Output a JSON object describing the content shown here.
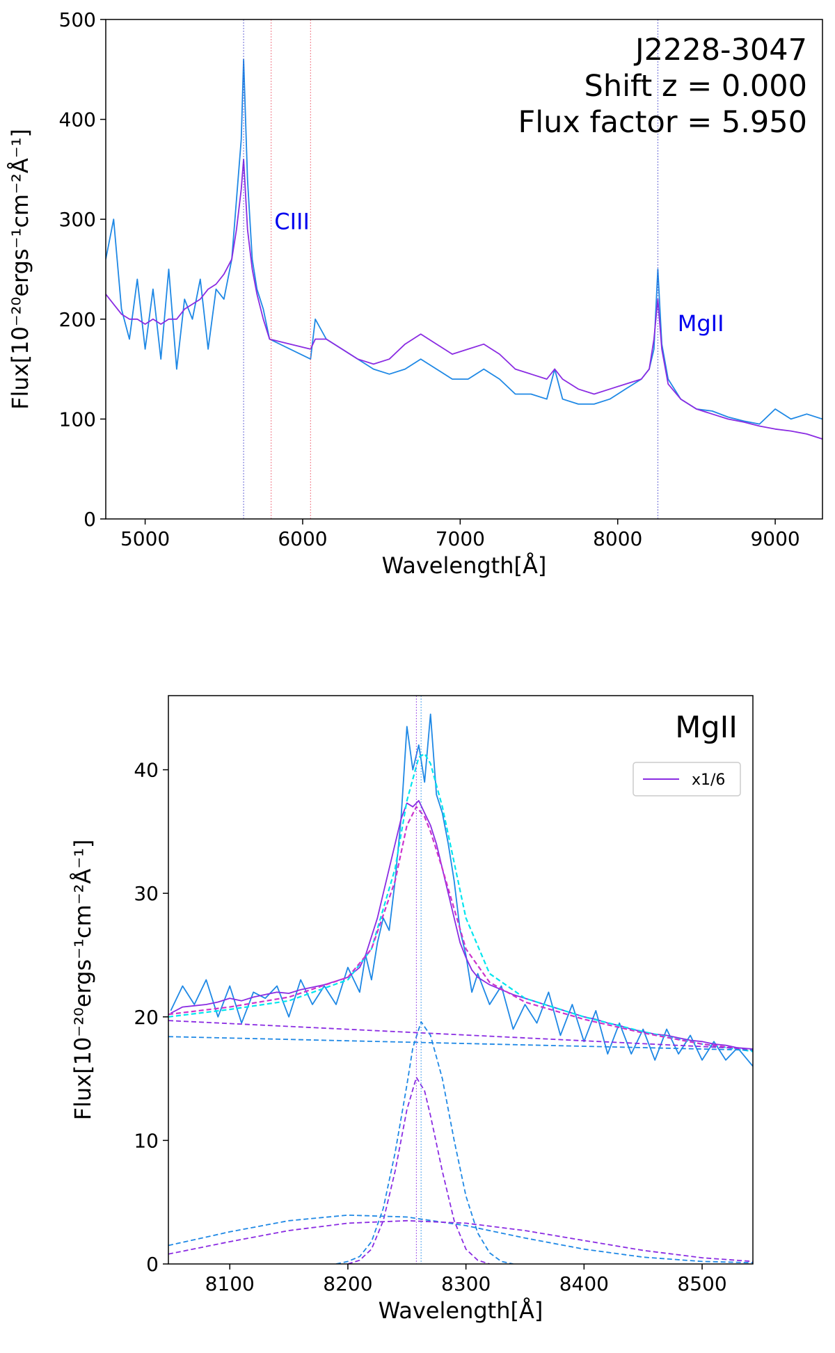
{
  "chart_data": [
    {
      "type": "line",
      "xlabel": "Wavelength[Å]",
      "ylabel": "Flux[10⁻²⁰ergs⁻¹cm⁻²Å⁻¹]",
      "xlim": [
        4750,
        9300
      ],
      "ylim": [
        0,
        500
      ],
      "xticks": [
        5000,
        6000,
        7000,
        8000,
        9000
      ],
      "yticks": [
        0,
        100,
        200,
        300,
        400,
        500
      ],
      "grid": false,
      "annotation_lines": [
        "J2228-3047",
        "Shift z  = 0.000",
        "Flux factor = 5.950"
      ],
      "line_labels": [
        {
          "text": "CIII",
          "x": 5820,
          "y": 290,
          "color": "#0000ee"
        },
        {
          "text": "MgII",
          "x": 8380,
          "y": 188,
          "color": "#0000ee"
        }
      ],
      "vlines": [
        {
          "x": 5625,
          "color": "#4444cc"
        },
        {
          "x": 5800,
          "color": "#ee5566"
        },
        {
          "x": 6050,
          "color": "#ee5566"
        },
        {
          "x": 8255,
          "color": "#4444cc"
        }
      ],
      "series": [
        {
          "color": "#1e88e5",
          "x": [
            4750,
            4800,
            4850,
            4900,
            4950,
            5000,
            5050,
            5100,
            5150,
            5200,
            5250,
            5300,
            5350,
            5400,
            5450,
            5500,
            5550,
            5580,
            5610,
            5625,
            5650,
            5680,
            5710,
            5750,
            5790,
            6050,
            6080,
            6150,
            6250,
            6350,
            6450,
            6550,
            6650,
            6750,
            6850,
            6950,
            7050,
            7150,
            7250,
            7350,
            7450,
            7550,
            7600,
            7650,
            7750,
            7850,
            7950,
            8050,
            8150,
            8200,
            8230,
            8255,
            8280,
            8320,
            8400,
            8500,
            8600,
            8700,
            8800,
            8900,
            9000,
            9100,
            9200,
            9300
          ],
          "y": [
            260,
            300,
            210,
            180,
            240,
            170,
            230,
            160,
            250,
            150,
            220,
            200,
            240,
            170,
            230,
            220,
            260,
            320,
            380,
            460,
            340,
            260,
            230,
            210,
            180,
            160,
            200,
            180,
            170,
            160,
            150,
            145,
            150,
            160,
            150,
            140,
            140,
            150,
            140,
            125,
            125,
            120,
            150,
            120,
            115,
            115,
            120,
            130,
            140,
            150,
            170,
            250,
            175,
            140,
            120,
            110,
            108,
            102,
            98,
            95,
            110,
            100,
            105,
            100
          ]
        },
        {
          "color": "#8a2be2",
          "x": [
            4750,
            4800,
            4850,
            4900,
            4950,
            5000,
            5050,
            5100,
            5150,
            5200,
            5250,
            5300,
            5350,
            5400,
            5450,
            5500,
            5550,
            5580,
            5610,
            5625,
            5650,
            5680,
            5710,
            5750,
            5790,
            6050,
            6080,
            6150,
            6250,
            6350,
            6450,
            6550,
            6650,
            6750,
            6850,
            6950,
            7050,
            7150,
            7250,
            7350,
            7450,
            7550,
            7600,
            7650,
            7750,
            7850,
            7950,
            8050,
            8150,
            8200,
            8230,
            8255,
            8280,
            8320,
            8400,
            8500,
            8600,
            8700,
            8800,
            8900,
            9000,
            9100,
            9200,
            9300
          ],
          "y": [
            225,
            215,
            205,
            200,
            200,
            195,
            200,
            195,
            200,
            200,
            210,
            215,
            220,
            230,
            235,
            245,
            260,
            290,
            330,
            360,
            290,
            250,
            225,
            200,
            180,
            170,
            180,
            180,
            170,
            160,
            155,
            160,
            175,
            185,
            175,
            165,
            170,
            175,
            165,
            150,
            145,
            140,
            150,
            140,
            130,
            125,
            130,
            135,
            140,
            150,
            180,
            220,
            170,
            135,
            120,
            110,
            105,
            100,
            97,
            93,
            90,
            88,
            85,
            80
          ]
        }
      ]
    },
    {
      "type": "line",
      "title": "MgII",
      "xlabel": "Wavelength[Å]",
      "ylabel": "Flux[10⁻²⁰ergs⁻¹cm⁻²Å⁻¹]",
      "xlim": [
        8048,
        8543
      ],
      "ylim": [
        0,
        46
      ],
      "xticks": [
        8100,
        8200,
        8300,
        8400,
        8500
      ],
      "yticks": [
        0,
        10,
        20,
        30,
        40
      ],
      "grid": false,
      "legend": {
        "position": "top-right",
        "entries": [
          {
            "name": "x1/6",
            "color": "#8a2be2"
          }
        ]
      },
      "vlines": [
        {
          "x": 8258,
          "color": "#8a2be2"
        },
        {
          "x": 8262,
          "color": "#1e88e5"
        }
      ],
      "series": [
        {
          "color": "#1e88e5",
          "style": "data",
          "x": [
            8050,
            8060,
            8070,
            8080,
            8090,
            8100,
            8110,
            8120,
            8130,
            8140,
            8150,
            8160,
            8170,
            8180,
            8190,
            8200,
            8210,
            8215,
            8220,
            8225,
            8230,
            8235,
            8240,
            8245,
            8250,
            8255,
            8260,
            8265,
            8270,
            8275,
            8280,
            8285,
            8290,
            8295,
            8300,
            8305,
            8310,
            8320,
            8330,
            8340,
            8350,
            8360,
            8370,
            8380,
            8390,
            8400,
            8410,
            8420,
            8430,
            8440,
            8450,
            8460,
            8470,
            8480,
            8490,
            8500,
            8510,
            8520,
            8530,
            8543
          ],
          "y": [
            20.5,
            22.5,
            21.0,
            23.0,
            20.0,
            22.5,
            19.5,
            22.0,
            21.5,
            22.5,
            20.0,
            23.0,
            21.0,
            22.5,
            21.0,
            24.0,
            22.0,
            25.0,
            23.0,
            26.0,
            28.0,
            27.0,
            31.0,
            36.0,
            43.5,
            40.0,
            42.0,
            39.0,
            44.5,
            38.0,
            36.5,
            34.0,
            31.0,
            27.0,
            25.0,
            22.0,
            23.5,
            21.0,
            22.5,
            19.0,
            21.0,
            19.5,
            22.0,
            18.5,
            21.0,
            18.0,
            20.5,
            17.0,
            19.5,
            17.0,
            19.0,
            16.5,
            19.0,
            17.0,
            18.5,
            16.5,
            18.0,
            16.5,
            17.5,
            16.0
          ]
        },
        {
          "color": "#8a2be2",
          "style": "data",
          "x": [
            8050,
            8060,
            8070,
            8080,
            8090,
            8100,
            8110,
            8120,
            8130,
            8140,
            8150,
            8160,
            8170,
            8180,
            8190,
            8200,
            8210,
            8215,
            8220,
            8225,
            8230,
            8235,
            8240,
            8245,
            8250,
            8255,
            8260,
            8265,
            8270,
            8275,
            8280,
            8285,
            8290,
            8295,
            8300,
            8305,
            8310,
            8320,
            8330,
            8340,
            8350,
            8360,
            8370,
            8380,
            8390,
            8400,
            8410,
            8420,
            8430,
            8440,
            8450,
            8460,
            8470,
            8480,
            8490,
            8500,
            8510,
            8520,
            8530,
            8543
          ],
          "y": [
            20.3,
            20.8,
            20.9,
            21.0,
            21.2,
            21.5,
            21.3,
            21.6,
            21.8,
            22.0,
            21.9,
            22.2,
            22.4,
            22.6,
            22.9,
            23.2,
            24.0,
            25.0,
            26.5,
            28.0,
            30.0,
            32.0,
            34.0,
            36.0,
            37.3,
            37.0,
            37.5,
            36.5,
            35.5,
            34.0,
            32.0,
            30.0,
            28.0,
            26.0,
            24.8,
            23.8,
            23.2,
            22.6,
            22.2,
            21.8,
            21.5,
            21.2,
            20.9,
            20.6,
            20.3,
            20.0,
            19.8,
            19.5,
            19.3,
            19.0,
            18.8,
            18.6,
            18.5,
            18.3,
            18.1,
            18.0,
            17.8,
            17.7,
            17.5,
            17.4
          ]
        },
        {
          "color": "#00e5ee",
          "style": "fit",
          "x": [
            8048,
            8100,
            8150,
            8200,
            8220,
            8240,
            8250,
            8260,
            8265,
            8270,
            8280,
            8300,
            8320,
            8350,
            8400,
            8450,
            8500,
            8543
          ],
          "y": [
            20.0,
            20.6,
            21.3,
            23.0,
            25.5,
            32.0,
            37.5,
            41.0,
            41.3,
            40.5,
            37.0,
            28.0,
            23.5,
            21.5,
            20.0,
            18.8,
            17.8,
            17.2
          ]
        },
        {
          "color": "#cc33cc",
          "style": "fit",
          "x": [
            8048,
            8100,
            8150,
            8200,
            8220,
            8240,
            8250,
            8258,
            8265,
            8270,
            8280,
            8300,
            8320,
            8350,
            8400,
            8450,
            8500,
            8543
          ],
          "y": [
            20.2,
            20.8,
            21.6,
            23.2,
            25.5,
            31.0,
            35.5,
            37.0,
            36.2,
            35.0,
            32.0,
            25.5,
            22.8,
            21.2,
            19.8,
            18.7,
            17.8,
            17.3
          ]
        },
        {
          "color": "#8a2be2",
          "style": "dashed",
          "x": [
            8048,
            8543
          ],
          "y": [
            19.7,
            17.4
          ]
        },
        {
          "color": "#1e88e5",
          "style": "dashed",
          "x": [
            8048,
            8543
          ],
          "y": [
            18.4,
            17.3
          ]
        },
        {
          "color": "#1e88e5",
          "style": "dashed",
          "x": [
            8190,
            8200,
            8210,
            8220,
            8230,
            8240,
            8250,
            8255,
            8262,
            8270,
            8280,
            8290,
            8300,
            8310,
            8320,
            8330,
            8340
          ],
          "y": [
            0.0,
            0.2,
            0.6,
            1.8,
            4.5,
            9.0,
            14.5,
            17.5,
            19.6,
            18.5,
            15.0,
            10.0,
            5.5,
            2.5,
            0.9,
            0.2,
            0.0
          ]
        },
        {
          "color": "#8a2be2",
          "style": "dashed",
          "x": [
            8200,
            8210,
            8220,
            8230,
            8240,
            8250,
            8258,
            8265,
            8270,
            8280,
            8290,
            8300,
            8310,
            8320
          ],
          "y": [
            0.0,
            0.3,
            1.2,
            3.5,
            7.5,
            12.5,
            15.1,
            14.0,
            12.0,
            7.5,
            3.5,
            1.2,
            0.3,
            0.0
          ]
        },
        {
          "color": "#1e88e5",
          "style": "dashed",
          "x": [
            8048,
            8100,
            8150,
            8200,
            8250,
            8300,
            8350,
            8400,
            8450,
            8500,
            8543
          ],
          "y": [
            1.5,
            2.6,
            3.5,
            3.95,
            3.8,
            3.1,
            2.1,
            1.2,
            0.55,
            0.2,
            0.1
          ]
        },
        {
          "color": "#8a2be2",
          "style": "dashed",
          "x": [
            8048,
            8100,
            8150,
            8200,
            8250,
            8300,
            8350,
            8400,
            8450,
            8500,
            8543
          ],
          "y": [
            0.8,
            1.8,
            2.7,
            3.3,
            3.5,
            3.3,
            2.7,
            1.9,
            1.1,
            0.5,
            0.2
          ]
        }
      ]
    }
  ]
}
